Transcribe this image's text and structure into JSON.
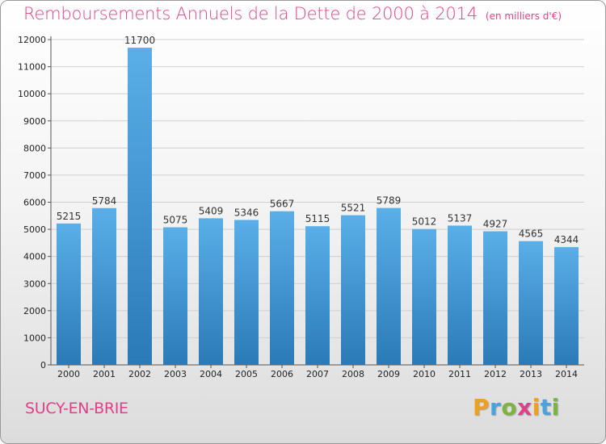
{
  "title": "Remboursements Annuels de la Dette de 2000 à 2014",
  "unit_note": "(en milliers d'€)",
  "city": "SUCY-EN-BRIE",
  "brand": {
    "letters": [
      "P",
      "r",
      "o",
      "x",
      "i",
      "t",
      "i"
    ],
    "colors": [
      "#f0a020",
      "#4aa3df",
      "#7cb342",
      "#e0408a",
      "#f0a020",
      "#4aa3df",
      "#7cb342"
    ]
  },
  "colors": {
    "bar_top": "#5aafe8",
    "bar_bottom": "#2a7ab8",
    "title": "#e0408a"
  },
  "chart_data": {
    "type": "bar",
    "categories": [
      "2000",
      "2001",
      "2002",
      "2003",
      "2004",
      "2005",
      "2006",
      "2007",
      "2008",
      "2009",
      "2010",
      "2011",
      "2012",
      "2013",
      "2014"
    ],
    "values": [
      5215,
      5784,
      11700,
      5075,
      5409,
      5346,
      5667,
      5115,
      5521,
      5789,
      5012,
      5137,
      4927,
      4565,
      4344
    ],
    "yticks": [
      0,
      1000,
      2000,
      3000,
      4000,
      5000,
      6000,
      7000,
      8000,
      9000,
      10000,
      11000,
      12000
    ],
    "ylim": [
      0,
      12000
    ],
    "xlabel": "",
    "ylabel": "",
    "grid": true
  }
}
